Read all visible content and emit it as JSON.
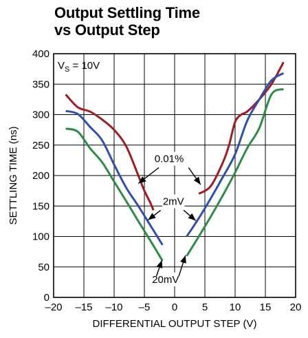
{
  "title_line1": "Output Settling Time",
  "title_line2": "vs Output Step",
  "chart_data": {
    "type": "line",
    "xlabel": "DIFFERENTIAL OUTPUT STEP (V)",
    "ylabel": "SETTLING TIME (ns)",
    "xlim": [
      -20,
      20
    ],
    "ylim": [
      0,
      400
    ],
    "xticks": [
      -20,
      -15,
      -10,
      -5,
      0,
      5,
      10,
      15,
      20
    ],
    "xtick_labels": [
      "–20",
      "–15",
      "–10",
      "–5",
      "0",
      "5",
      "10",
      "15",
      "20"
    ],
    "yticks": [
      0,
      50,
      100,
      150,
      200,
      250,
      300,
      350,
      400
    ],
    "grid": true,
    "condition_label": "V",
    "condition_sub": "S",
    "condition_value": " = 10V",
    "annotations": [
      "0.01%",
      "2mV",
      "20mV"
    ],
    "series": [
      {
        "name": "0.01%",
        "color": "#a01c22",
        "segments": [
          [
            [
              -18,
              333
            ],
            [
              -16,
              312
            ],
            [
              -14,
              305
            ],
            [
              -12,
              292
            ],
            [
              -10,
              275
            ],
            [
              -8,
              248
            ],
            [
              -6,
              200
            ],
            [
              -5,
              175
            ],
            [
              -4,
              155
            ],
            [
              -3.5,
              143
            ]
          ],
          [
            [
              4,
              170
            ],
            [
              6,
              183
            ],
            [
              8,
              222
            ],
            [
              9,
              250
            ],
            [
              10,
              288
            ],
            [
              11,
              300
            ],
            [
              12,
              305
            ],
            [
              14,
              325
            ],
            [
              16,
              350
            ],
            [
              18,
              386
            ]
          ]
        ]
      },
      {
        "name": "2mV",
        "color": "#2e4fb0",
        "segments": [
          [
            [
              -18,
              306
            ],
            [
              -16,
              301
            ],
            [
              -14,
              280
            ],
            [
              -12,
              258
            ],
            [
              -10,
              218
            ],
            [
              -8,
              180
            ],
            [
              -6,
              150
            ],
            [
              -4,
              118
            ],
            [
              -2,
              86
            ]
          ],
          [
            [
              2,
              100
            ],
            [
              4,
              130
            ],
            [
              6,
              163
            ],
            [
              8,
              198
            ],
            [
              10,
              235
            ],
            [
              12,
              290
            ],
            [
              14,
              325
            ],
            [
              16,
              356
            ],
            [
              18,
              368
            ]
          ]
        ]
      },
      {
        "name": "20mV",
        "color": "#2e8b45",
        "segments": [
          [
            [
              -18,
              277
            ],
            [
              -16,
              272
            ],
            [
              -14,
              245
            ],
            [
              -12,
              222
            ],
            [
              -10,
              190
            ],
            [
              -8,
              158
            ],
            [
              -6,
              125
            ],
            [
              -4,
              93
            ],
            [
              -2,
              60
            ]
          ],
          [
            [
              2,
              68
            ],
            [
              4,
              100
            ],
            [
              6,
              133
            ],
            [
              8,
              168
            ],
            [
              10,
              205
            ],
            [
              12,
              245
            ],
            [
              14,
              278
            ],
            [
              16,
              333
            ],
            [
              18,
              342
            ]
          ]
        ]
      }
    ]
  }
}
